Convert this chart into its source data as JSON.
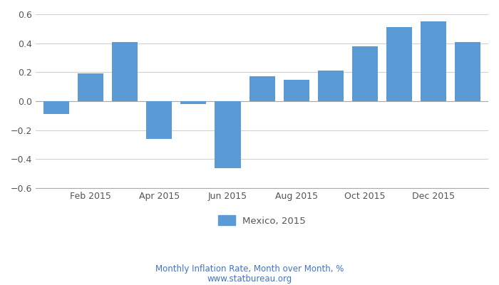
{
  "bar_values": [
    -0.09,
    0.19,
    0.41,
    -0.26,
    -0.02,
    -0.46,
    0.17,
    0.15,
    0.21,
    0.38,
    0.51,
    0.55,
    0.41
  ],
  "x_positions": [
    1,
    2,
    3,
    4,
    5,
    6,
    7,
    8,
    9,
    10,
    11,
    12,
    13
  ],
  "x_tick_positions": [
    2,
    4,
    6,
    8,
    10,
    12
  ],
  "x_labels": [
    "Feb 2015",
    "Apr 2015",
    "Jun 2015",
    "Aug 2015",
    "Oct 2015",
    "Dec 2015"
  ],
  "bar_color": "#5b9bd5",
  "ylim": [
    -0.6,
    0.6
  ],
  "yticks": [
    -0.6,
    -0.4,
    -0.2,
    0.0,
    0.2,
    0.4,
    0.6
  ],
  "legend_label": "Mexico, 2015",
  "footer_line1": "Monthly Inflation Rate, Month over Month, %",
  "footer_line2": "www.statbureau.org",
  "background_color": "#ffffff",
  "grid_color": "#d0d0d0",
  "spine_color": "#aaaaaa",
  "tick_label_color": "#555555",
  "footer_color": "#4472c4",
  "bar_width": 0.75
}
